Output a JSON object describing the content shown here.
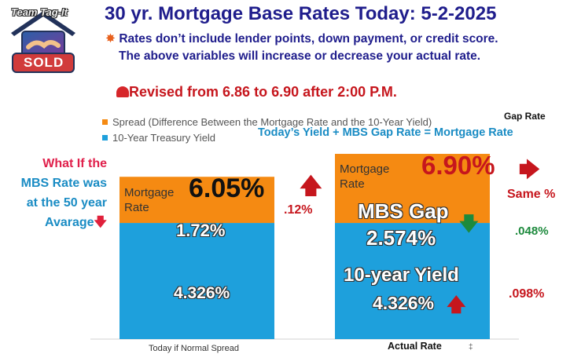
{
  "header": {
    "logo_text": "Team Tag-It",
    "logo_badge": "SOLD",
    "title": "30 yr. Mortgage Base Rates Today: 5-2-2025",
    "note_line1": "Rates don’t include lender points, down payment, or credit score.",
    "note_line2": "The above variables will increase or decrease your actual rate.",
    "revised": "Revised from 6.86 to 6.90 after 2:00 P.M."
  },
  "annotations": {
    "formula": "Today’s  Yield +  MBS Gap Rate = Mortgage Rate",
    "gap_rate_header": "Gap Rate",
    "what_if_line1": "What If the",
    "what_if_line2": "MBS Rate was",
    "what_if_line3": "at the 50 year",
    "what_if_line4": "Avarage",
    "left_mortgage_label_1": "Mortgage",
    "left_mortgage_label_2": "Rate",
    "left_total": "6.05%",
    "left_diff": ".12%",
    "right_mortgage_label_1": "Mortgage",
    "right_mortgage_label_2": "Rate",
    "right_total": "6.90%",
    "same": "Same %",
    "gap_change": ".048%",
    "yield_change": ".098%",
    "mbs_gap_label": "MBS Gap",
    "yield_label": "10-year Yield",
    "small_mark": "‡"
  },
  "colors": {
    "spread": "#f58a12",
    "yield": "#1ea0dc",
    "title": "#1f1d8c",
    "red": "#c6161d",
    "green": "#1d8a3d"
  },
  "chart_data": {
    "type": "bar",
    "stacked": true,
    "categories": [
      "Today if Normal Spread",
      "Actual Rate"
    ],
    "series": [
      {
        "name": "10-Year Treasury Yield",
        "values": [
          4.326,
          4.326
        ],
        "labels": [
          "4.326%",
          "4.326%"
        ]
      },
      {
        "name": "Spread (Difference Between the Mortgage Rate and the 10-Year Yield)",
        "values": [
          1.72,
          2.574
        ],
        "labels": [
          "1.72%",
          "2.574%"
        ]
      }
    ],
    "legend_position": "top-left",
    "grid": false
  }
}
